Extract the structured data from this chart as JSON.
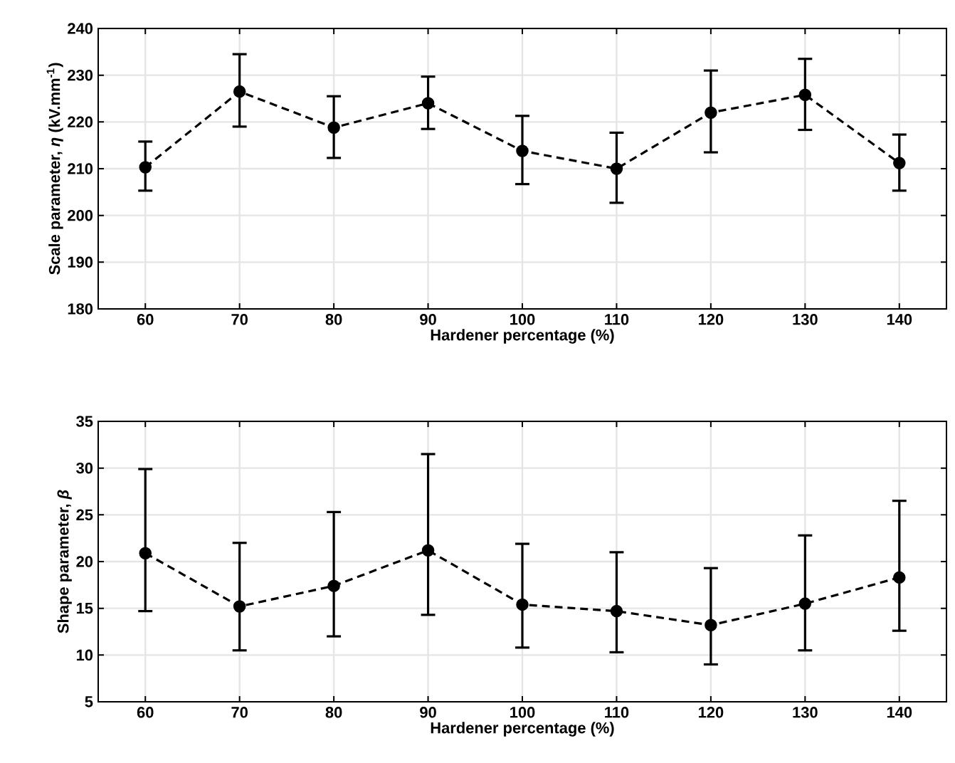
{
  "chart_data": [
    {
      "type": "line",
      "xlabel": "Hardener percentage (%)",
      "ylabel": "Scale parameter, *η* (kV.mm$^{-1}$)",
      "x": [
        60,
        70,
        80,
        90,
        100,
        110,
        120,
        130,
        140
      ],
      "values": [
        210.3,
        226.5,
        218.8,
        224,
        213.8,
        210,
        222,
        225.8,
        211.2
      ],
      "errors": [
        [
          205.3,
          215.8
        ],
        [
          219,
          234.5
        ],
        [
          212.3,
          225.5
        ],
        [
          218.5,
          229.7
        ],
        [
          206.7,
          221.3
        ],
        [
          202.7,
          217.7
        ],
        [
          213.5,
          231
        ],
        [
          218.3,
          233.5
        ],
        [
          205.3,
          217.3
        ]
      ],
      "color": "#000000",
      "marker": "circle",
      "line_style": "dashed",
      "grid": true,
      "xlim": [
        55,
        145
      ],
      "xticks": [
        60,
        70,
        80,
        90,
        100,
        110,
        120,
        130,
        140
      ],
      "ylim": [
        180,
        240
      ],
      "yticks": [
        180,
        190,
        200,
        210,
        220,
        230,
        240
      ]
    },
    {
      "type": "line",
      "xlabel": "Hardener percentage (%)",
      "ylabel": "Shape parameter, *β*",
      "x": [
        60,
        70,
        80,
        90,
        100,
        110,
        120,
        130,
        140
      ],
      "values": [
        20.9,
        15.2,
        17.4,
        21.2,
        15.4,
        14.7,
        13.2,
        15.5,
        18.3
      ],
      "errors": [
        [
          14.7,
          29.9
        ],
        [
          10.5,
          22
        ],
        [
          12,
          25.3
        ],
        [
          14.3,
          31.5
        ],
        [
          10.8,
          21.9
        ],
        [
          10.3,
          21
        ],
        [
          9,
          19.3
        ],
        [
          10.5,
          22.8
        ],
        [
          12.6,
          26.5
        ]
      ],
      "color": "#000000",
      "marker": "circle",
      "line_style": "dashed",
      "grid": true,
      "xlim": [
        55,
        145
      ],
      "xticks": [
        60,
        70,
        80,
        90,
        100,
        110,
        120,
        130,
        140
      ],
      "ylim": [
        5,
        35
      ],
      "yticks": [
        5,
        10,
        15,
        20,
        25,
        30,
        35
      ]
    }
  ]
}
